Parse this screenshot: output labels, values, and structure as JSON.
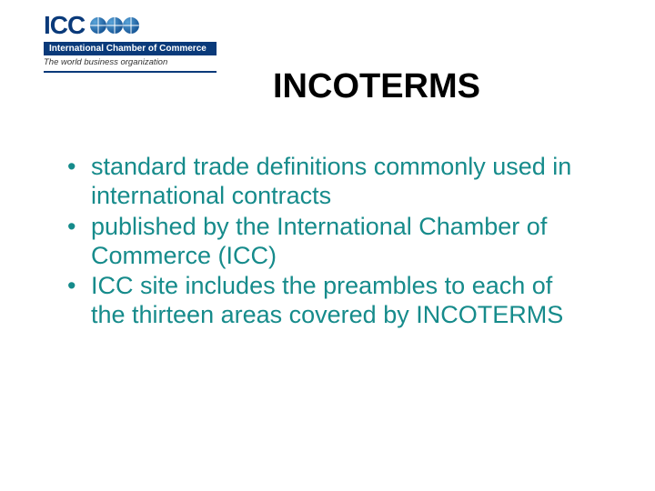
{
  "logo": {
    "abbr": "ICC",
    "bar_label": "International Chamber of Commerce",
    "tagline": "The world business organization",
    "colors": {
      "primary": "#0a3a7a",
      "globe_light": "#5aa4d9",
      "globe_dark": "#1a5a9a"
    }
  },
  "title": "INCOTERMS",
  "bullets": [
    "standard trade definitions commonly used in international contracts",
    "published by the International Chamber of Commerce (ICC)",
    "ICC site includes the preambles to each of the thirteen areas covered by INCOTERMS"
  ],
  "style": {
    "body_text_color": "#168b8b",
    "title_color": "#000000",
    "background_color": "#ffffff",
    "title_fontsize": 38,
    "body_fontsize": 27
  }
}
